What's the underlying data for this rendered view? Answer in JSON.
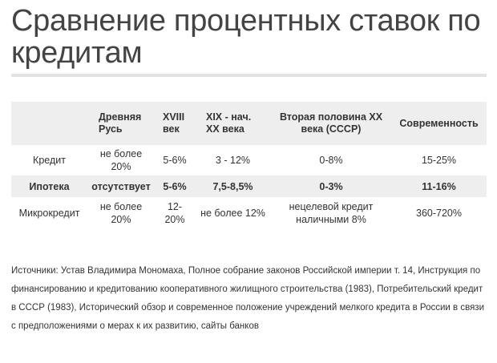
{
  "title": "Сравнение процентных ставок по кредитам",
  "table": {
    "headers": [
      "",
      "Древняя Русь",
      "XVIII век",
      "XIX - нач. XX века",
      "Вторая половина XX века (СССР)",
      "Современность"
    ],
    "rows": [
      {
        "label": "Кредит",
        "cells": [
          "не более 20%",
          "5-6%",
          "3 - 12%",
          "0-8%",
          "15-25%"
        ]
      },
      {
        "label": "Ипотека",
        "cells": [
          "отсутствует",
          "5-6%",
          "7,5-8,5%",
          "0-3%",
          "11-16%"
        ]
      },
      {
        "label": "Микрокредит",
        "cells": [
          "не более 20%",
          "12-20%",
          "не более 12%",
          "нецелевой кредит наличными 8%",
          "360-720%"
        ]
      }
    ]
  },
  "sources": "Источники: Устав Владимира Мономаха, Полное собрание законов Российской империи т. 14, Инструкция по финансированию и кредитованию кооперативного жилищного строительства (1983), Потребительский кредит в СССР (1983), Исторический обзор и современное положение учреждений мелкого кредита в России в связи с предположениями о мерах к их развитию, сайты банков"
}
